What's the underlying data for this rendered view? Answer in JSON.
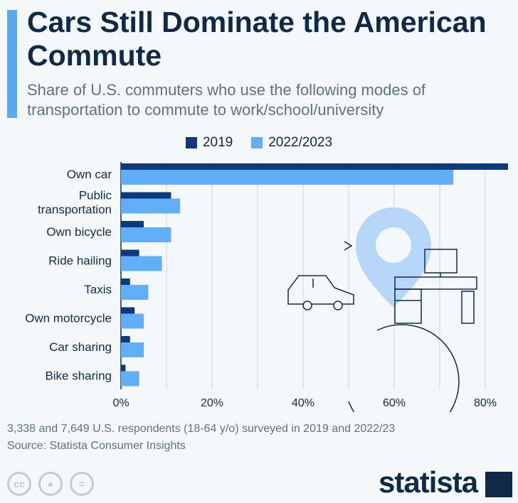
{
  "title": "Cars Still Dominate the American Commute",
  "subtitle": "Share of U.S. commuters who use the following modes of transportation to commute to work/school/university",
  "note": "3,338 and 7,649 U.S. respondents (18-64 y/o) surveyed in 2019 and 2022/23",
  "source": "Source: Statista Consumer Insights",
  "brand": "statista",
  "license_icons": [
    "cc-icon",
    "by-icon",
    "nd-icon"
  ],
  "colors": {
    "2019": "#0d3a7a",
    "2022/2023": "#62aef7"
  },
  "chart_data": {
    "type": "bar",
    "orientation": "horizontal",
    "categories": [
      "Own car",
      "Public transportation",
      "Own bicycle",
      "Ride hailing",
      "Taxis",
      "Own motorcycle",
      "Car sharing",
      "Bike sharing"
    ],
    "series": [
      {
        "name": "2019",
        "values": [
          85,
          11,
          5,
          4,
          2,
          3,
          2,
          1
        ]
      },
      {
        "name": "2022/2023",
        "values": [
          73,
          13,
          11,
          9,
          6,
          5,
          5,
          4
        ]
      }
    ],
    "xlim": [
      0,
      85
    ],
    "xticks": [
      0,
      20,
      40,
      60,
      80
    ],
    "xtick_labels": [
      "0%",
      "20%",
      "40%",
      "60%",
      "80%"
    ],
    "grid": true,
    "legend": "top-center"
  }
}
